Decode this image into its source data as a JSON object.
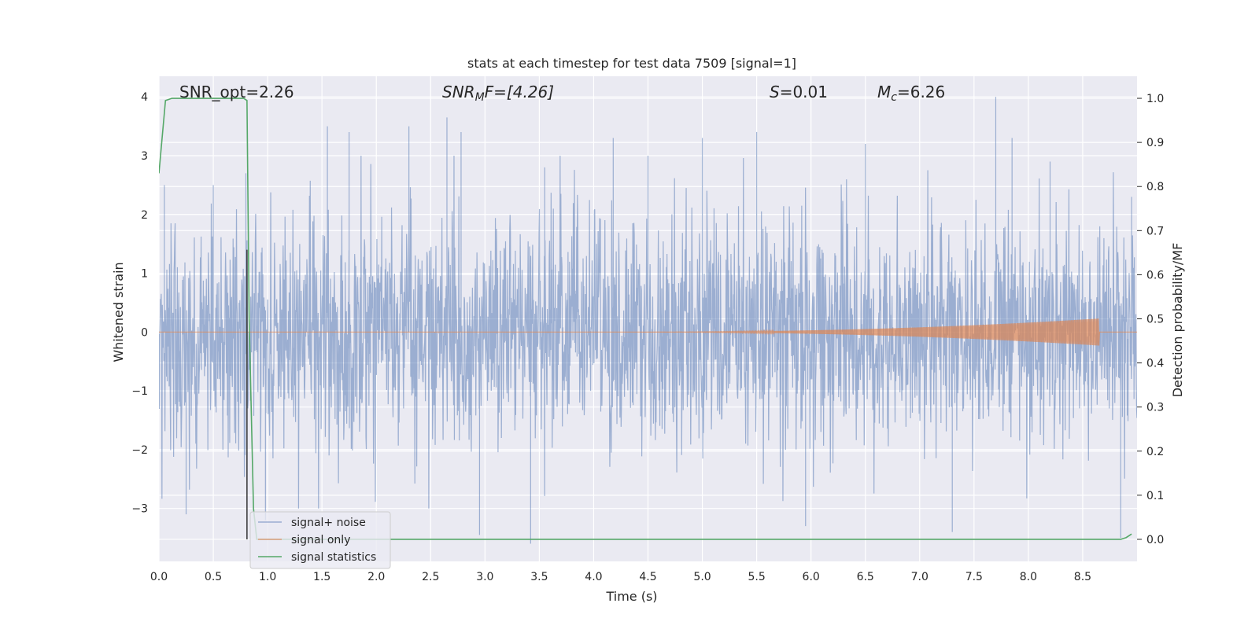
{
  "chart_data": {
    "type": "line",
    "title": "stats at each timestep for test data 7509 [signal=1]",
    "xlabel": "Time (s)",
    "ylabel": "Whitened strain",
    "ylabel_right": "Detection probability/MF",
    "xlim": [
      0.0,
      9.0
    ],
    "ylim": [
      -3.9,
      4.35
    ],
    "ylim_right": [
      -0.05,
      1.05
    ],
    "x_ticks": [
      "0.0",
      "0.5",
      "1.0",
      "1.5",
      "2.0",
      "2.5",
      "3.0",
      "3.5",
      "4.0",
      "4.5",
      "5.0",
      "5.5",
      "6.0",
      "6.5",
      "7.0",
      "7.5",
      "8.0",
      "8.5"
    ],
    "y_ticks": [
      "−3",
      "−2",
      "−1",
      "0",
      "1",
      "2",
      "3",
      "4"
    ],
    "y_ticks_right": [
      "0.0",
      "0.1",
      "0.2",
      "0.3",
      "0.4",
      "0.5",
      "0.6",
      "0.7",
      "0.8",
      "0.9",
      "1.0"
    ],
    "grid": true,
    "legend_position": "bottom-left",
    "annotations": {
      "snr_opt": "SNR_opt=2.26",
      "snr_mf_label": "SNR",
      "snr_mf_sub": "M",
      "snr_mf_value": "F=[4.26]",
      "s_label": "S",
      "s_value": "=0.01",
      "mc_label": "M",
      "mc_sub": "c",
      "mc_value": "=6.26"
    },
    "marker_line_x": 0.81,
    "series": [
      {
        "name": "signal+ noise",
        "color": "#4c72b0",
        "axis": "left",
        "description_values": "whitened noisy strain, approximately within [-3.6, 4.0]",
        "peaks": [
          [
            0.05,
            2.5
          ],
          [
            0.25,
            -3.1
          ],
          [
            0.5,
            2.5
          ],
          [
            0.8,
            2.7
          ],
          [
            0.98,
            -3.2
          ],
          [
            1.55,
            3.5
          ],
          [
            1.75,
            3.4
          ],
          [
            2.3,
            3.5
          ],
          [
            2.65,
            3.65
          ],
          [
            2.78,
            3.4
          ],
          [
            2.95,
            -3.45
          ],
          [
            3.42,
            -3.6
          ],
          [
            3.55,
            2.8
          ],
          [
            4.18,
            3.3
          ],
          [
            4.5,
            3.0
          ],
          [
            5.0,
            3.3
          ],
          [
            5.5,
            3.4
          ],
          [
            5.95,
            -3.3
          ],
          [
            6.5,
            3.2
          ],
          [
            7.3,
            -3.4
          ],
          [
            7.7,
            4.0
          ],
          [
            7.85,
            3.3
          ],
          [
            8.2,
            2.9
          ],
          [
            8.85,
            -3.5
          ],
          [
            8.95,
            2.3
          ]
        ]
      },
      {
        "name": "signal only",
        "color": "#dd8452",
        "axis": "left",
        "chirp_start": 4.3,
        "chirp_end": 8.65,
        "max_amplitude": 0.23
      },
      {
        "name": "signal statistics",
        "color": "#55a868",
        "axis": "right",
        "x": [
          0.0,
          0.06,
          0.12,
          0.4,
          0.78,
          0.81,
          0.83,
          0.87,
          0.9,
          1.2,
          3.0,
          6.0,
          8.85,
          8.9,
          8.95
        ],
        "y": [
          0.83,
          0.995,
          1.0,
          1.0,
          1.0,
          0.995,
          0.5,
          0.07,
          0.0,
          0.0,
          0.0,
          0.0,
          0.0,
          0.004,
          0.012
        ]
      }
    ]
  }
}
